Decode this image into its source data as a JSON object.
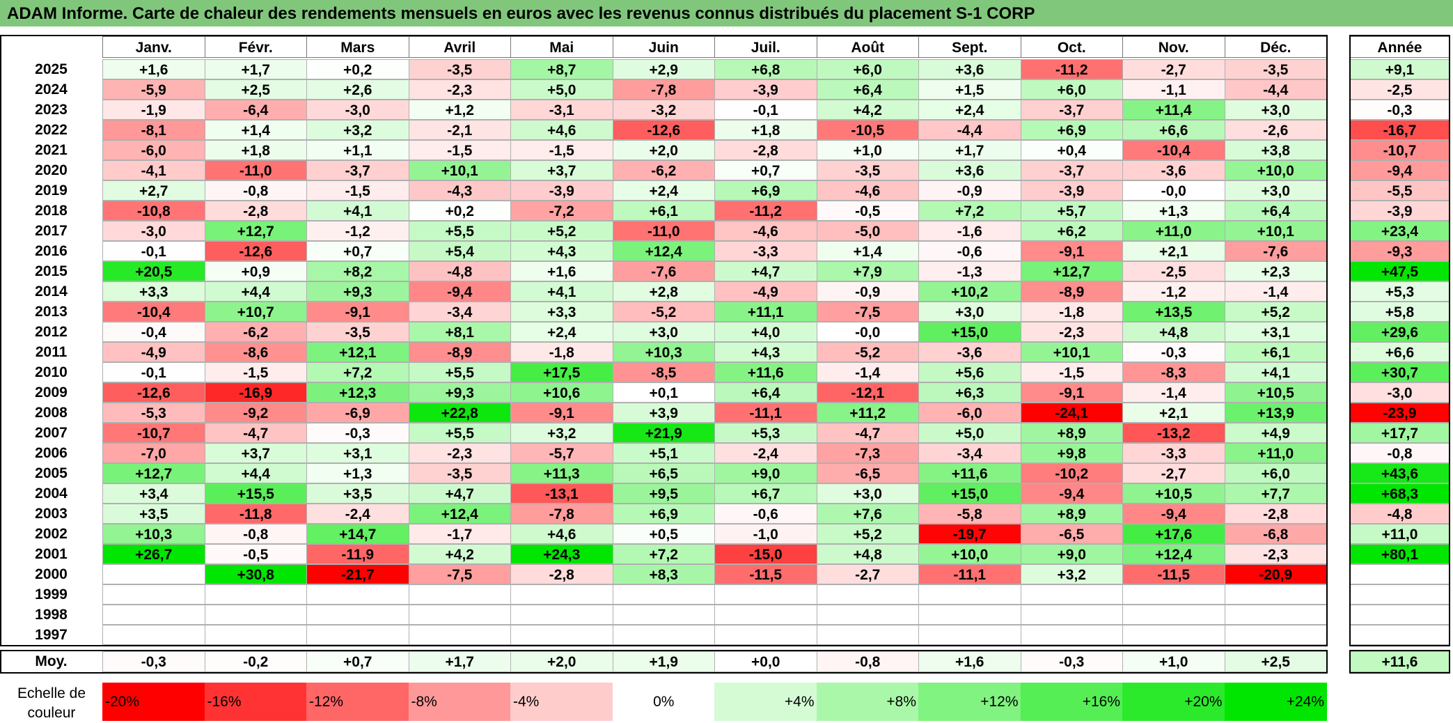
{
  "title": "ADAM Informe. Carte de chaleur des rendements mensuels en euros avec les revenus connus distribués du placement S-1 CORP",
  "chart_data": {
    "type": "heatmap",
    "months": [
      "Janv.",
      "Févr.",
      "Mars",
      "Avril",
      "Mai",
      "Juin",
      "Juil.",
      "Août",
      "Sept.",
      "Oct.",
      "Nov.",
      "Déc."
    ],
    "annual_header": "Année",
    "rows": [
      {
        "year": "2025",
        "values": [
          "+1,6",
          "+1,7",
          "+0,2",
          "-3,5",
          "+8,7",
          "+2,9",
          "+6,8",
          "+6,0",
          "+3,6",
          "-11,2",
          "-2,7",
          "-3,5"
        ],
        "annual": "+9,1"
      },
      {
        "year": "2024",
        "values": [
          "-5,9",
          "+2,5",
          "+2,6",
          "-2,3",
          "+5,0",
          "-7,8",
          "-3,9",
          "+6,4",
          "+1,5",
          "+6,0",
          "-1,1",
          "-4,4"
        ],
        "annual": "-2,5"
      },
      {
        "year": "2023",
        "values": [
          "-1,9",
          "-6,4",
          "-3,0",
          "+1,2",
          "-3,1",
          "-3,2",
          "-0,1",
          "+4,2",
          "+2,4",
          "-3,7",
          "+11,4",
          "+3,0"
        ],
        "annual": "-0,3"
      },
      {
        "year": "2022",
        "values": [
          "-8,1",
          "+1,4",
          "+3,2",
          "-2,1",
          "+4,6",
          "-12,6",
          "+1,8",
          "-10,5",
          "-4,4",
          "+6,9",
          "+6,6",
          "-2,6"
        ],
        "annual": "-16,7"
      },
      {
        "year": "2021",
        "values": [
          "-6,0",
          "+1,8",
          "+1,1",
          "-1,5",
          "-1,5",
          "+2,0",
          "-2,8",
          "+1,0",
          "+1,7",
          "+0,4",
          "-10,4",
          "+3,8"
        ],
        "annual": "-10,7"
      },
      {
        "year": "2020",
        "values": [
          "-4,1",
          "-11,0",
          "-3,7",
          "+10,1",
          "+3,7",
          "-6,2",
          "+0,7",
          "-3,5",
          "+3,6",
          "-3,7",
          "-3,6",
          "+10,0"
        ],
        "annual": "-9,4"
      },
      {
        "year": "2019",
        "values": [
          "+2,7",
          "-0,8",
          "-1,5",
          "-4,3",
          "-3,9",
          "+2,4",
          "+6,9",
          "-4,6",
          "-0,9",
          "-3,9",
          "-0,0",
          "+3,0"
        ],
        "annual": "-5,5"
      },
      {
        "year": "2018",
        "values": [
          "-10,8",
          "-2,8",
          "+4,1",
          "+0,2",
          "-7,2",
          "+6,1",
          "-11,2",
          "-0,5",
          "+7,2",
          "+5,7",
          "+1,3",
          "+6,4"
        ],
        "annual": "-3,9"
      },
      {
        "year": "2017",
        "values": [
          "-3,0",
          "+12,7",
          "-1,2",
          "+5,5",
          "+5,2",
          "-11,0",
          "-4,6",
          "-5,0",
          "-1,6",
          "+6,2",
          "+11,0",
          "+10,1"
        ],
        "annual": "+23,4"
      },
      {
        "year": "2016",
        "values": [
          "-0,1",
          "-12,6",
          "+0,7",
          "+5,4",
          "+4,3",
          "+12,4",
          "-3,3",
          "+1,4",
          "-0,6",
          "-9,1",
          "+2,1",
          "-7,6"
        ],
        "annual": "-9,3"
      },
      {
        "year": "2015",
        "values": [
          "+20,5",
          "+0,9",
          "+8,2",
          "-4,8",
          "+1,6",
          "-7,6",
          "+4,7",
          "+7,9",
          "-1,3",
          "+12,7",
          "-2,5",
          "+2,3"
        ],
        "annual": "+47,5"
      },
      {
        "year": "2014",
        "values": [
          "+3,3",
          "+4,4",
          "+9,3",
          "-9,4",
          "+4,1",
          "+2,8",
          "-4,9",
          "-0,9",
          "+10,2",
          "-8,9",
          "-1,2",
          "-1,4"
        ],
        "annual": "+5,3"
      },
      {
        "year": "2013",
        "values": [
          "-10,4",
          "+10,7",
          "-9,1",
          "-3,4",
          "+3,3",
          "-5,2",
          "+11,1",
          "-7,5",
          "+3,0",
          "-1,8",
          "+13,5",
          "+5,2"
        ],
        "annual": "+5,8"
      },
      {
        "year": "2012",
        "values": [
          "-0,4",
          "-6,2",
          "-3,5",
          "+8,1",
          "+2,4",
          "+3,0",
          "+4,0",
          "-0,0",
          "+15,0",
          "-2,3",
          "+4,8",
          "+3,1"
        ],
        "annual": "+29,6"
      },
      {
        "year": "2011",
        "values": [
          "-4,9",
          "-8,6",
          "+12,1",
          "-8,9",
          "-1,8",
          "+10,3",
          "+4,3",
          "-5,2",
          "-3,6",
          "+10,1",
          "-0,3",
          "+6,1"
        ],
        "annual": "+6,6"
      },
      {
        "year": "2010",
        "values": [
          "-0,1",
          "-1,5",
          "+7,2",
          "+5,5",
          "+17,5",
          "-8,5",
          "+11,6",
          "-1,4",
          "+5,6",
          "-1,5",
          "-8,3",
          "+4,1"
        ],
        "annual": "+30,7"
      },
      {
        "year": "2009",
        "values": [
          "-12,6",
          "-16,9",
          "+12,3",
          "+9,3",
          "+10,6",
          "+0,1",
          "+6,4",
          "-12,1",
          "+6,3",
          "-9,1",
          "-1,4",
          "+10,5"
        ],
        "annual": "-3,0"
      },
      {
        "year": "2008",
        "values": [
          "-5,3",
          "-9,2",
          "-6,9",
          "+22,8",
          "-9,1",
          "+3,9",
          "-11,1",
          "+11,2",
          "-6,0",
          "-24,1",
          "+2,1",
          "+13,9"
        ],
        "annual": "-23,9"
      },
      {
        "year": "2007",
        "values": [
          "-10,7",
          "-4,7",
          "-0,3",
          "+5,5",
          "+3,2",
          "+21,9",
          "+5,3",
          "-4,7",
          "+5,0",
          "+8,9",
          "-13,2",
          "+4,9"
        ],
        "annual": "+17,7"
      },
      {
        "year": "2006",
        "values": [
          "-7,0",
          "+3,7",
          "+3,1",
          "-2,3",
          "-5,7",
          "+5,1",
          "-2,4",
          "-7,3",
          "-3,4",
          "+9,8",
          "-3,3",
          "+11,0"
        ],
        "annual": "-0,8"
      },
      {
        "year": "2005",
        "values": [
          "+12,7",
          "+4,4",
          "+1,3",
          "-3,5",
          "+11,3",
          "+6,5",
          "+9,0",
          "-6,5",
          "+11,6",
          "-10,2",
          "-2,7",
          "+6,0"
        ],
        "annual": "+43,6"
      },
      {
        "year": "2004",
        "values": [
          "+3,4",
          "+15,5",
          "+3,5",
          "+4,7",
          "-13,1",
          "+9,5",
          "+6,7",
          "+3,0",
          "+15,0",
          "-9,4",
          "+10,5",
          "+7,7"
        ],
        "annual": "+68,3"
      },
      {
        "year": "2003",
        "values": [
          "+3,5",
          "-11,8",
          "-2,4",
          "+12,4",
          "-7,8",
          "+6,9",
          "-0,6",
          "+7,6",
          "-5,8",
          "+8,9",
          "-9,4",
          "-2,8"
        ],
        "annual": "-4,8"
      },
      {
        "year": "2002",
        "values": [
          "+10,3",
          "-0,8",
          "+14,7",
          "-1,7",
          "+4,6",
          "+0,5",
          "-1,0",
          "+5,2",
          "-19,7",
          "-6,5",
          "+17,6",
          "-6,8"
        ],
        "annual": "+11,0"
      },
      {
        "year": "2001",
        "values": [
          "+26,7",
          "-0,5",
          "-11,9",
          "+4,2",
          "+24,3",
          "+7,2",
          "-15,0",
          "+4,8",
          "+10,0",
          "+9,0",
          "+12,4",
          "-2,3"
        ],
        "annual": "+80,1"
      },
      {
        "year": "2000",
        "values": [
          "",
          "+30,8",
          "-21,7",
          "-7,5",
          "-2,8",
          "+8,3",
          "-11,5",
          "-2,7",
          "-11,1",
          "+3,2",
          "-11,5",
          "-20,9"
        ],
        "annual": ""
      },
      {
        "year": "1999",
        "values": [
          "",
          "",
          "",
          "",
          "",
          "",
          "",
          "",
          "",
          "",
          "",
          ""
        ],
        "annual": ""
      },
      {
        "year": "1998",
        "values": [
          "",
          "",
          "",
          "",
          "",
          "",
          "",
          "",
          "",
          "",
          "",
          ""
        ],
        "annual": ""
      },
      {
        "year": "1997",
        "values": [
          "",
          "",
          "",
          "",
          "",
          "",
          "",
          "",
          "",
          "",
          "",
          ""
        ],
        "annual": ""
      }
    ],
    "average": {
      "label": "Moy.",
      "values": [
        "-0,3",
        "-0,2",
        "+0,7",
        "+1,7",
        "+2,0",
        "+1,9",
        "+0,0",
        "-0,8",
        "+1,6",
        "-0,3",
        "+1,0",
        "+2,5"
      ],
      "annual": "+11,6"
    },
    "scale": {
      "label_line1": "Echelle de",
      "label_line2": "couleur",
      "stops": [
        "-20%",
        "-16%",
        "-12%",
        "-8%",
        "-4%",
        "0%",
        "+4%",
        "+8%",
        "+12%",
        "+16%",
        "+20%",
        "+24%"
      ],
      "stop_values": [
        -20,
        -16,
        -12,
        -8,
        -4,
        0,
        4,
        8,
        12,
        16,
        20,
        24
      ]
    },
    "colors": {
      "title_bar": "#80c77b",
      "neg_max": "#ff0000",
      "pos_max": "#00e600",
      "neutral": "#ffffff"
    }
  }
}
